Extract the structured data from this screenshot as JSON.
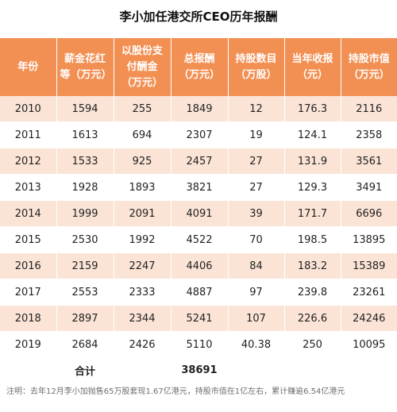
{
  "title": "李小加任港交所CEO历年报酬",
  "headers": [
    "年份",
    "薪金花红等（万元）",
    "以股份支付酬金（万元）",
    "总报酬（万元）",
    "持股数目（万股）",
    "当年收报（元）",
    "持股市值（万元）"
  ],
  "rows": [
    [
      "2010",
      "1594",
      "255",
      "1849",
      "12",
      "176.3",
      "2116"
    ],
    [
      "2011",
      "1613",
      "694",
      "2307",
      "19",
      "124.1",
      "2358"
    ],
    [
      "2012",
      "1533",
      "925",
      "2457",
      "27",
      "131.9",
      "3561"
    ],
    [
      "2013",
      "1928",
      "1893",
      "3821",
      "27",
      "129.3",
      "3491"
    ],
    [
      "2014",
      "1999",
      "2091",
      "4091",
      "39",
      "171.7",
      "6696"
    ],
    [
      "2015",
      "2530",
      "1992",
      "4522",
      "70",
      "198.5",
      "13895"
    ],
    [
      "2016",
      "2159",
      "2247",
      "4406",
      "84",
      "183.2",
      "15389"
    ],
    [
      "2017",
      "2553",
      "2333",
      "4887",
      "97",
      "239.8",
      "23261"
    ],
    [
      "2018",
      "2897",
      "2344",
      "5241",
      "107",
      "226.6",
      "24246"
    ],
    [
      "2019",
      "2684",
      "2426",
      "5110",
      "40.38",
      "250",
      "10095"
    ]
  ],
  "total": {
    "label": "合计",
    "value": "38691"
  },
  "note": "注明：去年12月李小加抛售65万股套现1.67亿港元，持股市值在1亿左右，累计赚逾6.54亿港元"
}
